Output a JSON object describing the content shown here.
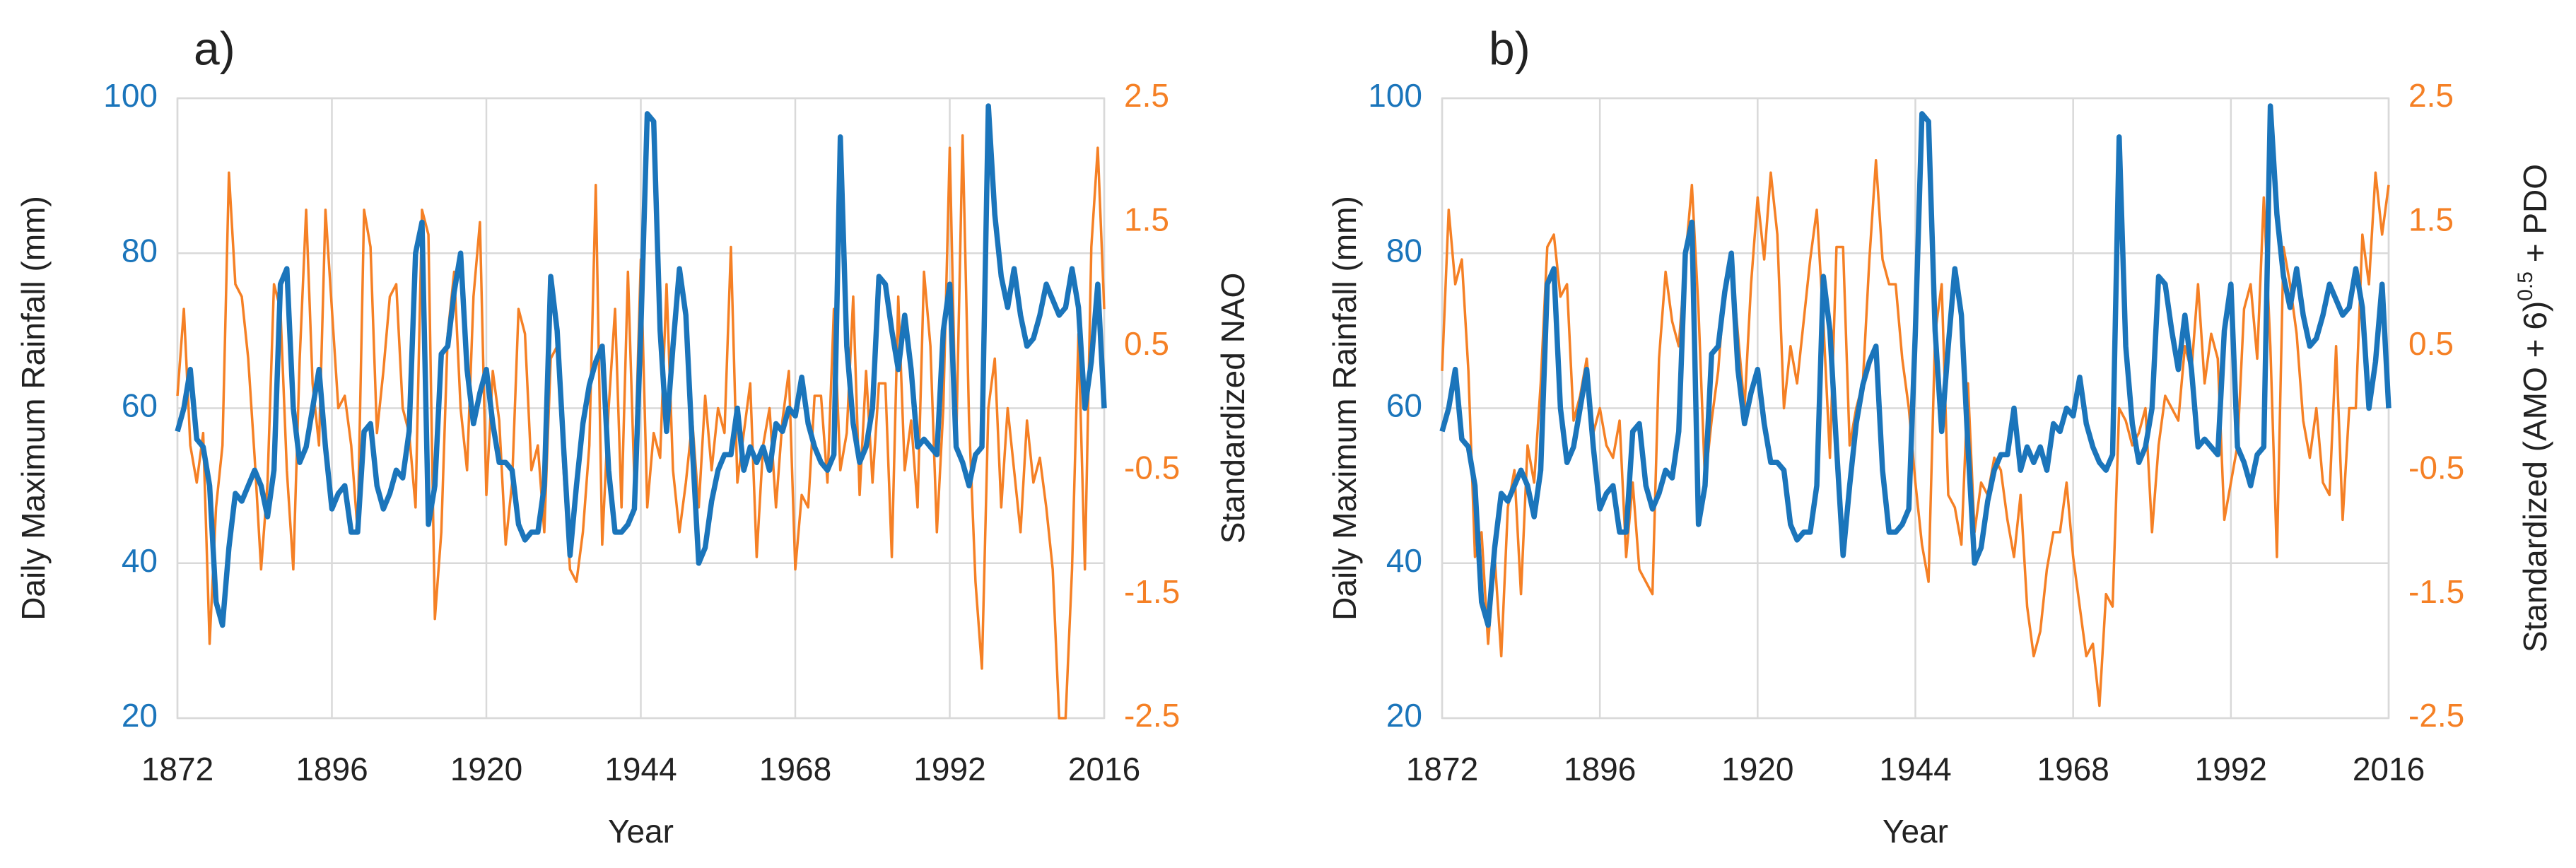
{
  "chart_data": [
    {
      "type": "line",
      "panel_label": "a)",
      "xlabel": "Year",
      "ylabel": "Daily Maximum Rainfall (mm)",
      "y2label": "Standardized NAO",
      "x": [
        1872,
        1873,
        1874,
        1875,
        1876,
        1877,
        1878,
        1879,
        1880,
        1881,
        1882,
        1883,
        1884,
        1885,
        1886,
        1887,
        1888,
        1889,
        1890,
        1891,
        1892,
        1893,
        1894,
        1895,
        1896,
        1897,
        1898,
        1899,
        1900,
        1901,
        1902,
        1903,
        1904,
        1905,
        1906,
        1907,
        1908,
        1909,
        1910,
        1911,
        1912,
        1913,
        1914,
        1915,
        1916,
        1917,
        1918,
        1919,
        1920,
        1921,
        1922,
        1923,
        1924,
        1925,
        1926,
        1927,
        1928,
        1929,
        1930,
        1931,
        1932,
        1933,
        1934,
        1935,
        1936,
        1937,
        1938,
        1939,
        1940,
        1941,
        1942,
        1943,
        1944,
        1945,
        1946,
        1947,
        1948,
        1949,
        1950,
        1951,
        1952,
        1953,
        1954,
        1955,
        1956,
        1957,
        1958,
        1959,
        1960,
        1961,
        1962,
        1963,
        1964,
        1965,
        1966,
        1967,
        1968,
        1969,
        1970,
        1971,
        1972,
        1973,
        1974,
        1975,
        1976,
        1977,
        1978,
        1979,
        1980,
        1981,
        1982,
        1983,
        1984,
        1985,
        1986,
        1987,
        1988,
        1989,
        1990,
        1991,
        1992,
        1993,
        1994,
        1995,
        1996,
        1997,
        1998,
        1999,
        2000,
        2001,
        2002,
        2003,
        2004,
        2005,
        2006,
        2007,
        2008,
        2009,
        2010,
        2011,
        2012,
        2013,
        2014,
        2015,
        2016
      ],
      "series": [
        {
          "color": "#1b75bb",
          "values": [
            57,
            60,
            65,
            56,
            55,
            50,
            35,
            32,
            42,
            49,
            48,
            50,
            52,
            50,
            46,
            52,
            76,
            78,
            60,
            53,
            55,
            60,
            65,
            55,
            47,
            49,
            50,
            44,
            44,
            57,
            58,
            50,
            47,
            49,
            52,
            51,
            57,
            80,
            84,
            45,
            50,
            67,
            68,
            75,
            80,
            65,
            58,
            62,
            65,
            58,
            53,
            53,
            52,
            45,
            43,
            44,
            44,
            50,
            77,
            70,
            55,
            41,
            50,
            58,
            63,
            66,
            68,
            52,
            44,
            44,
            45,
            47,
            70,
            98,
            97,
            70,
            57,
            68,
            78,
            72,
            55,
            40,
            42,
            48,
            52,
            54,
            54,
            60,
            52,
            55,
            53,
            55,
            52,
            58,
            57,
            60,
            59,
            64,
            58,
            55,
            53,
            52,
            54,
            95,
            68,
            58,
            53,
            55,
            60,
            77,
            76,
            70,
            65,
            72,
            65,
            55,
            56,
            55,
            54,
            70,
            76,
            55,
            53,
            50,
            54,
            55,
            99,
            85,
            77,
            73,
            78,
            72,
            68,
            69,
            72,
            76,
            74,
            72,
            73,
            78,
            73,
            60,
            66,
            76,
            60
          ]
        },
        {
          "color": "#f58025",
          "axis": "y2",
          "values": [
            0.1,
            0.8,
            -0.3,
            -0.6,
            -0.2,
            -1.9,
            -0.8,
            -0.3,
            1.9,
            1.0,
            0.9,
            0.4,
            -0.4,
            -1.3,
            -0.6,
            1.0,
            0.8,
            -0.5,
            -1.3,
            0.4,
            1.6,
            0.2,
            -0.3,
            1.6,
            0.8,
            0.0,
            0.1,
            -0.3,
            -1.0,
            1.6,
            1.3,
            -0.2,
            0.3,
            0.9,
            1.0,
            0.0,
            -0.2,
            -0.8,
            1.6,
            1.4,
            -1.7,
            -1.0,
            0.6,
            1.1,
            0.0,
            -0.5,
            0.9,
            1.5,
            -0.7,
            0.3,
            -0.1,
            -1.1,
            -0.6,
            0.8,
            0.6,
            -0.5,
            -0.3,
            -1.0,
            0.4,
            0.5,
            -0.5,
            -1.3,
            -1.4,
            -1.0,
            -0.3,
            1.8,
            -1.1,
            0.0,
            0.8,
            -0.8,
            1.1,
            -0.6,
            1.2,
            -0.8,
            -0.2,
            -0.4,
            1.0,
            -0.5,
            -1.0,
            -0.6,
            -0.1,
            -0.8,
            0.1,
            -0.5,
            0.0,
            -0.2,
            1.3,
            -0.6,
            -0.2,
            0.2,
            -1.2,
            -0.3,
            0.0,
            -0.8,
            -0.1,
            0.3,
            -1.3,
            -0.7,
            -0.8,
            0.1,
            0.1,
            -0.6,
            0.8,
            -0.5,
            -0.2,
            0.9,
            -0.7,
            0.3,
            -0.6,
            0.2,
            0.2,
            -1.2,
            0.9,
            -0.5,
            -0.1,
            -0.8,
            1.1,
            0.5,
            -1.0,
            0.0,
            2.1,
            -0.3,
            2.2,
            -0.1,
            -1.4,
            -2.1,
            0.0,
            0.4,
            -0.8,
            0.0,
            -0.5,
            -1.0,
            -0.1,
            -0.6,
            -0.4,
            -0.8,
            -1.3,
            -2.5,
            -2.5,
            -1.3,
            0.6,
            -1.3,
            1.3,
            2.1,
            0.8
          ]
        }
      ],
      "xlim": [
        1872,
        2016
      ],
      "xticks": [
        1872,
        1896,
        1920,
        1944,
        1968,
        1992,
        2016
      ],
      "ylim": [
        20,
        100
      ],
      "yticks": [
        20,
        40,
        60,
        80,
        100
      ],
      "y2lim": [
        -2.5,
        2.5
      ],
      "y2ticks": [
        -2.5,
        -1.5,
        -0.5,
        0.5,
        1.5,
        2.5
      ],
      "grid": true
    },
    {
      "type": "line",
      "panel_label": "b)",
      "xlabel": "Year",
      "ylabel": "Daily Maximum Rainfall (mm)",
      "y2label": "Standardized (AMO + 6)",
      "y2label_sup": "0.5",
      "y2label_tail": " + PDO",
      "x": [
        1872,
        1873,
        1874,
        1875,
        1876,
        1877,
        1878,
        1879,
        1880,
        1881,
        1882,
        1883,
        1884,
        1885,
        1886,
        1887,
        1888,
        1889,
        1890,
        1891,
        1892,
        1893,
        1894,
        1895,
        1896,
        1897,
        1898,
        1899,
        1900,
        1901,
        1902,
        1903,
        1904,
        1905,
        1906,
        1907,
        1908,
        1909,
        1910,
        1911,
        1912,
        1913,
        1914,
        1915,
        1916,
        1917,
        1918,
        1919,
        1920,
        1921,
        1922,
        1923,
        1924,
        1925,
        1926,
        1927,
        1928,
        1929,
        1930,
        1931,
        1932,
        1933,
        1934,
        1935,
        1936,
        1937,
        1938,
        1939,
        1940,
        1941,
        1942,
        1943,
        1944,
        1945,
        1946,
        1947,
        1948,
        1949,
        1950,
        1951,
        1952,
        1953,
        1954,
        1955,
        1956,
        1957,
        1958,
        1959,
        1960,
        1961,
        1962,
        1963,
        1964,
        1965,
        1966,
        1967,
        1968,
        1969,
        1970,
        1971,
        1972,
        1973,
        1974,
        1975,
        1976,
        1977,
        1978,
        1979,
        1980,
        1981,
        1982,
        1983,
        1984,
        1985,
        1986,
        1987,
        1988,
        1989,
        1990,
        1991,
        1992,
        1993,
        1994,
        1995,
        1996,
        1997,
        1998,
        1999,
        2000,
        2001,
        2002,
        2003,
        2004,
        2005,
        2006,
        2007,
        2008,
        2009,
        2010,
        2011,
        2012,
        2013,
        2014,
        2015,
        2016
      ],
      "series": [
        {
          "color": "#1b75bb",
          "values": [
            57,
            60,
            65,
            56,
            55,
            50,
            35,
            32,
            42,
            49,
            48,
            50,
            52,
            50,
            46,
            52,
            76,
            78,
            60,
            53,
            55,
            60,
            65,
            55,
            47,
            49,
            50,
            44,
            44,
            57,
            58,
            50,
            47,
            49,
            52,
            51,
            57,
            80,
            84,
            45,
            50,
            67,
            68,
            75,
            80,
            65,
            58,
            62,
            65,
            58,
            53,
            53,
            52,
            45,
            43,
            44,
            44,
            50,
            77,
            70,
            55,
            41,
            50,
            58,
            63,
            66,
            68,
            52,
            44,
            44,
            45,
            47,
            70,
            98,
            97,
            70,
            57,
            68,
            78,
            72,
            55,
            40,
            42,
            48,
            52,
            54,
            54,
            60,
            52,
            55,
            53,
            55,
            52,
            58,
            57,
            60,
            59,
            64,
            58,
            55,
            53,
            52,
            54,
            95,
            68,
            58,
            53,
            55,
            60,
            77,
            76,
            70,
            65,
            72,
            65,
            55,
            56,
            55,
            54,
            70,
            76,
            55,
            53,
            50,
            54,
            55,
            99,
            85,
            77,
            73,
            78,
            72,
            68,
            69,
            72,
            76,
            74,
            72,
            73,
            78,
            73,
            60,
            66,
            76,
            60
          ]
        },
        {
          "color": "#f58025",
          "axis": "y2",
          "values": [
            0.3,
            1.6,
            1.0,
            1.2,
            0.3,
            -1.2,
            -1.0,
            -1.9,
            -1.2,
            -2.0,
            -0.8,
            -0.5,
            -1.5,
            -0.3,
            -0.6,
            0.2,
            1.3,
            1.4,
            0.9,
            1.0,
            -0.1,
            0.1,
            0.4,
            -0.2,
            0.0,
            -0.3,
            -0.4,
            -0.1,
            -1.2,
            -0.6,
            -1.3,
            -1.4,
            -1.5,
            0.4,
            1.1,
            0.7,
            0.5,
            1.2,
            1.8,
            0.8,
            -0.6,
            -0.1,
            0.3,
            1.0,
            1.2,
            0.6,
            0.0,
            1.0,
            1.7,
            1.2,
            1.9,
            1.4,
            0.0,
            0.5,
            0.2,
            0.7,
            1.2,
            1.6,
            0.7,
            -0.4,
            1.3,
            1.3,
            -0.3,
            0.0,
            0.2,
            1.2,
            2.0,
            1.2,
            1.0,
            1.0,
            0.4,
            0.0,
            -0.6,
            -1.1,
            -1.4,
            0.6,
            1.0,
            -0.7,
            -0.8,
            -1.1,
            0.2,
            -1.0,
            -0.6,
            -0.7,
            -0.4,
            -0.5,
            -0.9,
            -1.2,
            -0.7,
            -1.6,
            -2.0,
            -1.8,
            -1.3,
            -1.0,
            -1.0,
            -0.6,
            -1.2,
            -1.6,
            -2.0,
            -1.9,
            -2.4,
            -1.5,
            -1.6,
            0.0,
            -0.1,
            -0.3,
            -0.2,
            0.0,
            -1.0,
            -0.3,
            0.1,
            0.0,
            -0.1,
            0.5,
            0.3,
            1.0,
            0.2,
            0.6,
            0.4,
            -0.9,
            -0.6,
            -0.3,
            0.8,
            1.0,
            0.4,
            1.7,
            0.5,
            -1.2,
            1.3,
            1.0,
            0.6,
            -0.1,
            -0.4,
            0.0,
            -0.6,
            -0.7,
            0.5,
            -0.9,
            0.0,
            0.0,
            1.4,
            1.0,
            1.9,
            1.4,
            1.8
          ]
        }
      ],
      "xlim": [
        1872,
        2016
      ],
      "xticks": [
        1872,
        1896,
        1920,
        1944,
        1968,
        1992,
        2016
      ],
      "ylim": [
        20,
        100
      ],
      "yticks": [
        20,
        40,
        60,
        80,
        100
      ],
      "y2lim": [
        -2.5,
        2.5
      ],
      "y2ticks": [
        -2.5,
        -1.5,
        -0.5,
        0.5,
        1.5,
        2.5
      ],
      "grid": true
    }
  ]
}
